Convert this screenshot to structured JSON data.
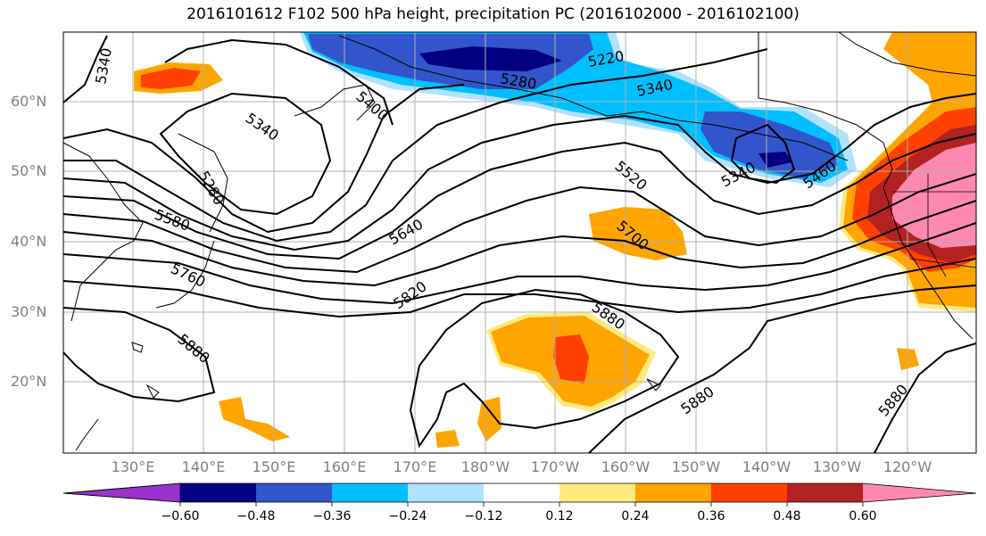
{
  "title": "2016101612 F102 500 hPa height, precipitation PC (2016102000 - 2016102100)",
  "lat_labels": [
    "60°N",
    "50°N",
    "40°N",
    "30°N",
    "20°N"
  ],
  "lon_labels": [
    "130°E",
    "140°E",
    "150°E",
    "160°E",
    "170°E",
    "180°W",
    "170°W",
    "160°W",
    "150°W",
    "140°W",
    "130°W",
    "120°W"
  ],
  "contour_labels": [
    "5340",
    "5400",
    "5340",
    "5280",
    "5220",
    "5340",
    "5280",
    "5580",
    "5640",
    "5520",
    "5340",
    "5460",
    "5700",
    "5760",
    "5820",
    "5880",
    "5880",
    "5880",
    "5880"
  ],
  "colorbar": {
    "tick_labels": [
      "−0.60",
      "−0.48",
      "−0.36",
      "−0.24",
      "−0.12",
      "0.12",
      "0.24",
      "0.36",
      "0.48",
      "0.60"
    ],
    "colors": [
      "#9933cc",
      "#000080",
      "#3355cc",
      "#00bfff",
      "#b0e2ff",
      "#ffffff",
      "#ffeb80",
      "#ffa500",
      "#ff4000",
      "#b22222",
      "#ff88b0"
    ]
  }
}
